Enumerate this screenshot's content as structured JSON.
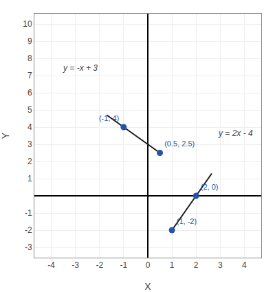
{
  "chart_data": {
    "type": "line",
    "xlabel": "X",
    "ylabel": "Y",
    "xlim": [
      -4.7,
      4.7
    ],
    "ylim": [
      -3.6,
      10.6
    ],
    "xticks": [
      -4,
      -3,
      -2,
      -1,
      0,
      1,
      2,
      3,
      4
    ],
    "yticks": [
      -3,
      -2,
      -1,
      1,
      2,
      3,
      4,
      5,
      6,
      7,
      8,
      9,
      10
    ],
    "grid": true,
    "series": [
      {
        "type": "line",
        "color": "#1a1a1a",
        "x": [
          -1.7,
          0.5
        ],
        "values": [
          4.7,
          2.5
        ]
      },
      {
        "type": "line",
        "color": "#1a1a1a",
        "x": [
          1.0,
          2.65
        ],
        "values": [
          -2,
          1.3
        ]
      },
      {
        "type": "scatter",
        "color": "#2255aa",
        "marker": "circle",
        "x": [
          -1,
          0.5,
          1,
          2
        ],
        "values": [
          4,
          2.5,
          -2,
          0
        ],
        "data_labels": true,
        "value_labels": [
          "(-1, 4)",
          "(0.5, 2.5)",
          "(1, -2)",
          "(2, 0)"
        ]
      }
    ],
    "annotations": [
      {
        "text": "y = -x + 3",
        "x": -3.6,
        "y": 7.1
      },
      {
        "text": "y = 2x - 4",
        "x": 2.85,
        "y": 3.3
      }
    ]
  }
}
